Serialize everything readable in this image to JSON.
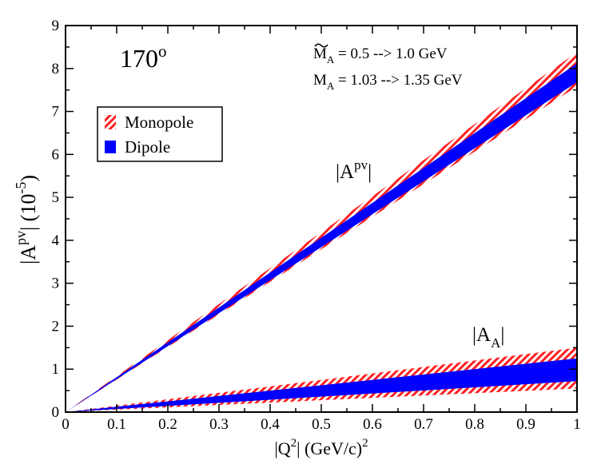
{
  "chart_data": {
    "type": "area",
    "title": "170o",
    "title_main": "170",
    "title_sup": "o",
    "xlabel": {
      "main": "|Q",
      "sup": "2",
      "rest": "| (GeV/c)",
      "sup2": "2"
    },
    "ylabel": {
      "main": "|A",
      "sup": "pv",
      "rest": "| (10",
      "sup2": "-5",
      "tail": ")"
    },
    "xlim": [
      0,
      1
    ],
    "ylim": [
      0,
      9
    ],
    "xticks": [
      "0",
      "0.1",
      "0.2",
      "0.3",
      "0.4",
      "0.5",
      "0.6",
      "0.7",
      "0.8",
      "0.9",
      "1"
    ],
    "yticks": [
      "0",
      "1",
      "2",
      "3",
      "4",
      "5",
      "6",
      "7",
      "8",
      "9"
    ],
    "annotations": {
      "line1": {
        "prefix": "M",
        "sub": "A",
        "text": " = 0.5 --> 1.0 GeV"
      },
      "line2": {
        "prefix": "M",
        "sub": "A",
        "text": " = 1.03 --> 1.35 GeV"
      },
      "apv": {
        "main": "|A",
        "sup": "pv",
        "tail": "|"
      },
      "aa": {
        "main": "|A",
        "sub": "A",
        "tail": "|"
      }
    },
    "legend": {
      "position": "upper-left",
      "entries": [
        "Monopole",
        "Dipole"
      ]
    },
    "colors": {
      "monopole": "#ff2020",
      "dipole": "#0000ff"
    },
    "series": [
      {
        "name": "Monopole |Apv|",
        "style": "hatched",
        "x": [
          0,
          1
        ],
        "lower": [
          0,
          7.58
        ],
        "upper": [
          0,
          8.38
        ]
      },
      {
        "name": "Dipole |Apv|",
        "style": "solid",
        "x": [
          0,
          1
        ],
        "lower": [
          0,
          7.68
        ],
        "upper": [
          0,
          8.12
        ]
      },
      {
        "name": "Monopole |AA|",
        "style": "hatched",
        "x": [
          0,
          1
        ],
        "lower": [
          0,
          0.55
        ],
        "upper": [
          0,
          1.5
        ]
      },
      {
        "name": "Dipole |AA|",
        "style": "solid",
        "x": [
          0,
          1
        ],
        "lower": [
          0,
          0.72
        ],
        "upper": [
          0,
          1.25
        ]
      }
    ]
  }
}
